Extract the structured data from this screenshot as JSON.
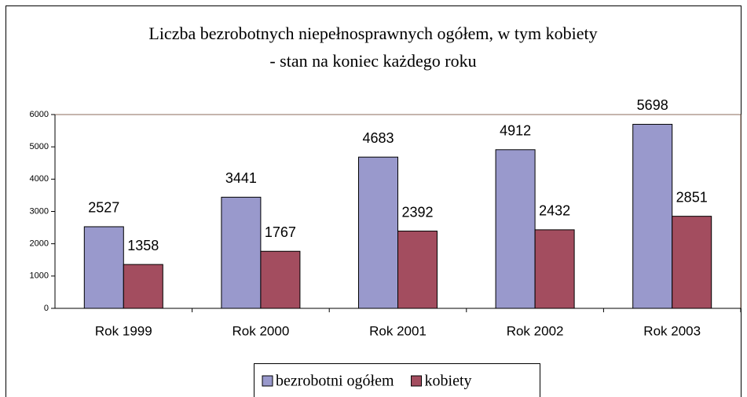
{
  "chart_data": {
    "type": "bar",
    "title": "Liczba bezrobotnych niepełnosprawnych ogółem, w tym kobiety",
    "subtitle": "- stan na koniec każdego roku",
    "categories": [
      "Rok 1999",
      "Rok 2000",
      "Rok 2001",
      "Rok 2002",
      "Rok 2003"
    ],
    "series": [
      {
        "name": "bezrobotni ogółem",
        "color": "#9999cc",
        "values": [
          2527,
          3441,
          4683,
          4912,
          5698
        ]
      },
      {
        "name": "kobiety",
        "color": "#a34d5f",
        "values": [
          1358,
          1767,
          2392,
          2432,
          2851
        ]
      }
    ],
    "ylim": [
      0,
      6000
    ],
    "yticks": [
      0,
      1000,
      2000,
      3000,
      4000,
      5000,
      6000
    ],
    "legend": "bottom"
  }
}
